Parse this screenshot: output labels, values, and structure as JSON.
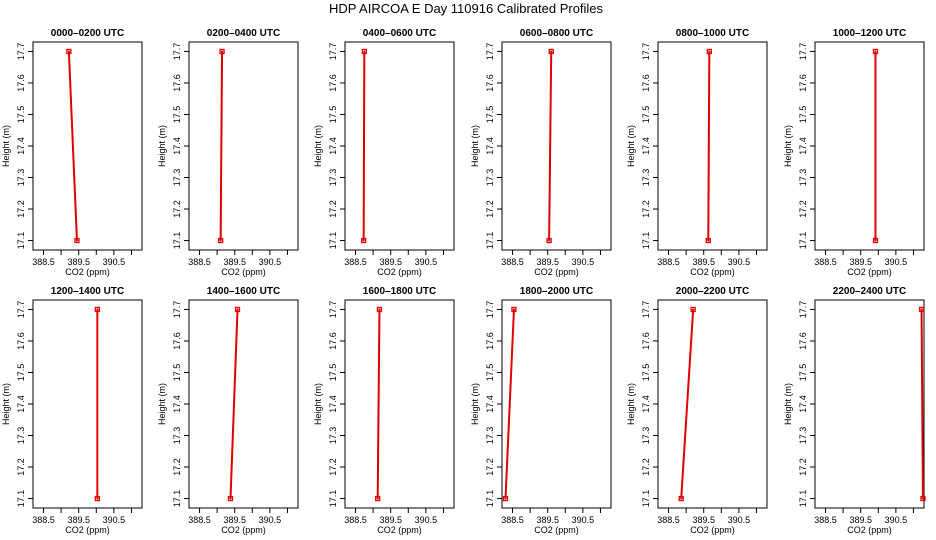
{
  "title": "HDP AIRCOA E  Day 110916  Calibrated Profiles",
  "chart_data": [
    {
      "type": "line",
      "title": "0000–0200 UTC",
      "xlabel": "CO2 (ppm)",
      "ylabel": "Height (m)",
      "xlim": [
        388.2,
        391.3
      ],
      "ylim": [
        17.07,
        17.73
      ],
      "x_ticks": [
        388.5,
        389.0,
        389.5,
        390.0,
        390.5,
        391.0
      ],
      "x_tick_labels": [
        "388.5",
        "389.5",
        "390.5"
      ],
      "y_ticks": [
        17.1,
        17.2,
        17.3,
        17.4,
        17.5,
        17.6,
        17.7
      ],
      "y_tick_labels": [
        "17.1",
        "17.2",
        "17.3",
        "17.4",
        "17.5",
        "17.6",
        "17.7"
      ],
      "points": [
        {
          "co2": 389.22,
          "height": 17.7
        },
        {
          "co2": 389.45,
          "height": 17.1
        }
      ]
    },
    {
      "type": "line",
      "title": "0200–0400 UTC",
      "xlabel": "CO2 (ppm)",
      "ylabel": "Height (m)",
      "xlim": [
        388.2,
        391.3
      ],
      "ylim": [
        17.07,
        17.73
      ],
      "x_ticks": [
        388.5,
        389.0,
        389.5,
        390.0,
        390.5,
        391.0
      ],
      "x_tick_labels": [
        "388.5",
        "389.5",
        "390.5"
      ],
      "y_ticks": [
        17.1,
        17.2,
        17.3,
        17.4,
        17.5,
        17.6,
        17.7
      ],
      "y_tick_labels": [
        "17.1",
        "17.2",
        "17.3",
        "17.4",
        "17.5",
        "17.6",
        "17.7"
      ],
      "points": [
        {
          "co2": 389.14,
          "height": 17.7
        },
        {
          "co2": 389.1,
          "height": 17.1
        }
      ]
    },
    {
      "type": "line",
      "title": "0400–0600 UTC",
      "xlabel": "CO2 (ppm)",
      "ylabel": "Height (m)",
      "xlim": [
        388.2,
        391.3
      ],
      "ylim": [
        17.07,
        17.73
      ],
      "x_ticks": [
        388.5,
        389.0,
        389.5,
        390.0,
        390.5,
        391.0
      ],
      "x_tick_labels": [
        "388.5",
        "389.5",
        "390.5"
      ],
      "y_ticks": [
        17.1,
        17.2,
        17.3,
        17.4,
        17.5,
        17.6,
        17.7
      ],
      "y_tick_labels": [
        "17.1",
        "17.2",
        "17.3",
        "17.4",
        "17.5",
        "17.6",
        "17.7"
      ],
      "points": [
        {
          "co2": 388.75,
          "height": 17.7
        },
        {
          "co2": 388.73,
          "height": 17.1
        }
      ]
    },
    {
      "type": "line",
      "title": "0600–0800 UTC",
      "xlabel": "CO2 (ppm)",
      "ylabel": "Height (m)",
      "xlim": [
        388.2,
        391.3
      ],
      "ylim": [
        17.07,
        17.73
      ],
      "x_ticks": [
        388.5,
        389.0,
        389.5,
        390.0,
        390.5,
        391.0
      ],
      "x_tick_labels": [
        "388.5",
        "389.5",
        "390.5"
      ],
      "y_ticks": [
        17.1,
        17.2,
        17.3,
        17.4,
        17.5,
        17.6,
        17.7
      ],
      "y_tick_labels": [
        "17.1",
        "17.2",
        "17.3",
        "17.4",
        "17.5",
        "17.6",
        "17.7"
      ],
      "points": [
        {
          "co2": 389.6,
          "height": 17.7
        },
        {
          "co2": 389.54,
          "height": 17.1
        }
      ]
    },
    {
      "type": "line",
      "title": "0800–1000 UTC",
      "xlabel": "CO2 (ppm)",
      "ylabel": "Height (m)",
      "xlim": [
        388.2,
        391.3
      ],
      "ylim": [
        17.07,
        17.73
      ],
      "x_ticks": [
        388.5,
        389.0,
        389.5,
        390.0,
        390.5,
        391.0
      ],
      "x_tick_labels": [
        "388.5",
        "389.5",
        "390.5"
      ],
      "y_ticks": [
        17.1,
        17.2,
        17.3,
        17.4,
        17.5,
        17.6,
        17.7
      ],
      "y_tick_labels": [
        "17.1",
        "17.2",
        "17.3",
        "17.4",
        "17.5",
        "17.6",
        "17.7"
      ],
      "points": [
        {
          "co2": 389.66,
          "height": 17.7
        },
        {
          "co2": 389.63,
          "height": 17.1
        }
      ]
    },
    {
      "type": "line",
      "title": "1000–1200 UTC",
      "xlabel": "CO2 (ppm)",
      "ylabel": "Height (m)",
      "xlim": [
        388.2,
        391.3
      ],
      "ylim": [
        17.07,
        17.73
      ],
      "x_ticks": [
        388.5,
        389.0,
        389.5,
        390.0,
        390.5,
        391.0
      ],
      "x_tick_labels": [
        "388.5",
        "389.5",
        "390.5"
      ],
      "y_ticks": [
        17.1,
        17.2,
        17.3,
        17.4,
        17.5,
        17.6,
        17.7
      ],
      "y_tick_labels": [
        "17.1",
        "17.2",
        "17.3",
        "17.4",
        "17.5",
        "17.6",
        "17.7"
      ],
      "points": [
        {
          "co2": 389.92,
          "height": 17.7
        },
        {
          "co2": 389.92,
          "height": 17.1
        }
      ]
    },
    {
      "type": "line",
      "title": "1200–1400 UTC",
      "xlabel": "CO2 (ppm)",
      "ylabel": "Height (m)",
      "xlim": [
        388.2,
        391.3
      ],
      "ylim": [
        17.07,
        17.73
      ],
      "x_ticks": [
        388.5,
        389.0,
        389.5,
        390.0,
        390.5,
        391.0
      ],
      "x_tick_labels": [
        "388.5",
        "389.5",
        "390.5"
      ],
      "y_ticks": [
        17.1,
        17.2,
        17.3,
        17.4,
        17.5,
        17.6,
        17.7
      ],
      "y_tick_labels": [
        "17.1",
        "17.2",
        "17.3",
        "17.4",
        "17.5",
        "17.6",
        "17.7"
      ],
      "points": [
        {
          "co2": 390.03,
          "height": 17.7
        },
        {
          "co2": 390.03,
          "height": 17.1
        }
      ]
    },
    {
      "type": "line",
      "title": "1400–1600 UTC",
      "xlabel": "CO2 (ppm)",
      "ylabel": "Height (m)",
      "xlim": [
        388.2,
        391.3
      ],
      "ylim": [
        17.07,
        17.73
      ],
      "x_ticks": [
        388.5,
        389.0,
        389.5,
        390.0,
        390.5,
        391.0
      ],
      "x_tick_labels": [
        "388.5",
        "389.5",
        "390.5"
      ],
      "y_ticks": [
        17.1,
        17.2,
        17.3,
        17.4,
        17.5,
        17.6,
        17.7
      ],
      "y_tick_labels": [
        "17.1",
        "17.2",
        "17.3",
        "17.4",
        "17.5",
        "17.6",
        "17.7"
      ],
      "points": [
        {
          "co2": 389.58,
          "height": 17.7
        },
        {
          "co2": 389.38,
          "height": 17.1
        }
      ]
    },
    {
      "type": "line",
      "title": "1600–1800 UTC",
      "xlabel": "CO2 (ppm)",
      "ylabel": "Height (m)",
      "xlim": [
        388.2,
        391.3
      ],
      "ylim": [
        17.07,
        17.73
      ],
      "x_ticks": [
        388.5,
        389.0,
        389.5,
        390.0,
        390.5,
        391.0
      ],
      "x_tick_labels": [
        "388.5",
        "389.5",
        "390.5"
      ],
      "y_ticks": [
        17.1,
        17.2,
        17.3,
        17.4,
        17.5,
        17.6,
        17.7
      ],
      "y_tick_labels": [
        "17.1",
        "17.2",
        "17.3",
        "17.4",
        "17.5",
        "17.6",
        "17.7"
      ],
      "points": [
        {
          "co2": 389.18,
          "height": 17.7
        },
        {
          "co2": 389.13,
          "height": 17.1
        }
      ]
    },
    {
      "type": "line",
      "title": "1800–2000 UTC",
      "xlabel": "CO2 (ppm)",
      "ylabel": "Height (m)",
      "xlim": [
        388.2,
        391.3
      ],
      "ylim": [
        17.07,
        17.73
      ],
      "x_ticks": [
        388.5,
        389.0,
        389.5,
        390.0,
        390.5,
        391.0
      ],
      "x_tick_labels": [
        "388.5",
        "389.5",
        "390.5"
      ],
      "y_ticks": [
        17.1,
        17.2,
        17.3,
        17.4,
        17.5,
        17.6,
        17.7
      ],
      "y_tick_labels": [
        "17.1",
        "17.2",
        "17.3",
        "17.4",
        "17.5",
        "17.6",
        "17.7"
      ],
      "points": [
        {
          "co2": 388.54,
          "height": 17.7
        },
        {
          "co2": 388.3,
          "height": 17.1
        }
      ]
    },
    {
      "type": "line",
      "title": "2000–2200 UTC",
      "xlabel": "CO2 (ppm)",
      "ylabel": "Height (m)",
      "xlim": [
        388.2,
        391.3
      ],
      "ylim": [
        17.07,
        17.73
      ],
      "x_ticks": [
        388.5,
        389.0,
        389.5,
        390.0,
        390.5,
        391.0
      ],
      "x_tick_labels": [
        "388.5",
        "389.5",
        "390.5"
      ],
      "y_ticks": [
        17.1,
        17.2,
        17.3,
        17.4,
        17.5,
        17.6,
        17.7
      ],
      "y_tick_labels": [
        "17.1",
        "17.2",
        "17.3",
        "17.4",
        "17.5",
        "17.6",
        "17.7"
      ],
      "points": [
        {
          "co2": 389.2,
          "height": 17.7
        },
        {
          "co2": 388.86,
          "height": 17.1
        }
      ]
    },
    {
      "type": "line",
      "title": "2200–2400 UTC",
      "xlabel": "CO2 (ppm)",
      "ylabel": "Height (m)",
      "xlim": [
        388.2,
        391.3
      ],
      "ylim": [
        17.07,
        17.73
      ],
      "x_ticks": [
        388.5,
        389.0,
        389.5,
        390.0,
        390.5,
        391.0
      ],
      "x_tick_labels": [
        "388.5",
        "389.5",
        "390.5"
      ],
      "y_ticks": [
        17.1,
        17.2,
        17.3,
        17.4,
        17.5,
        17.6,
        17.7
      ],
      "y_tick_labels": [
        "17.1",
        "17.2",
        "17.3",
        "17.4",
        "17.5",
        "17.6",
        "17.7"
      ],
      "points": [
        {
          "co2": 391.23,
          "height": 17.7
        },
        {
          "co2": 391.27,
          "height": 17.1
        }
      ]
    }
  ]
}
